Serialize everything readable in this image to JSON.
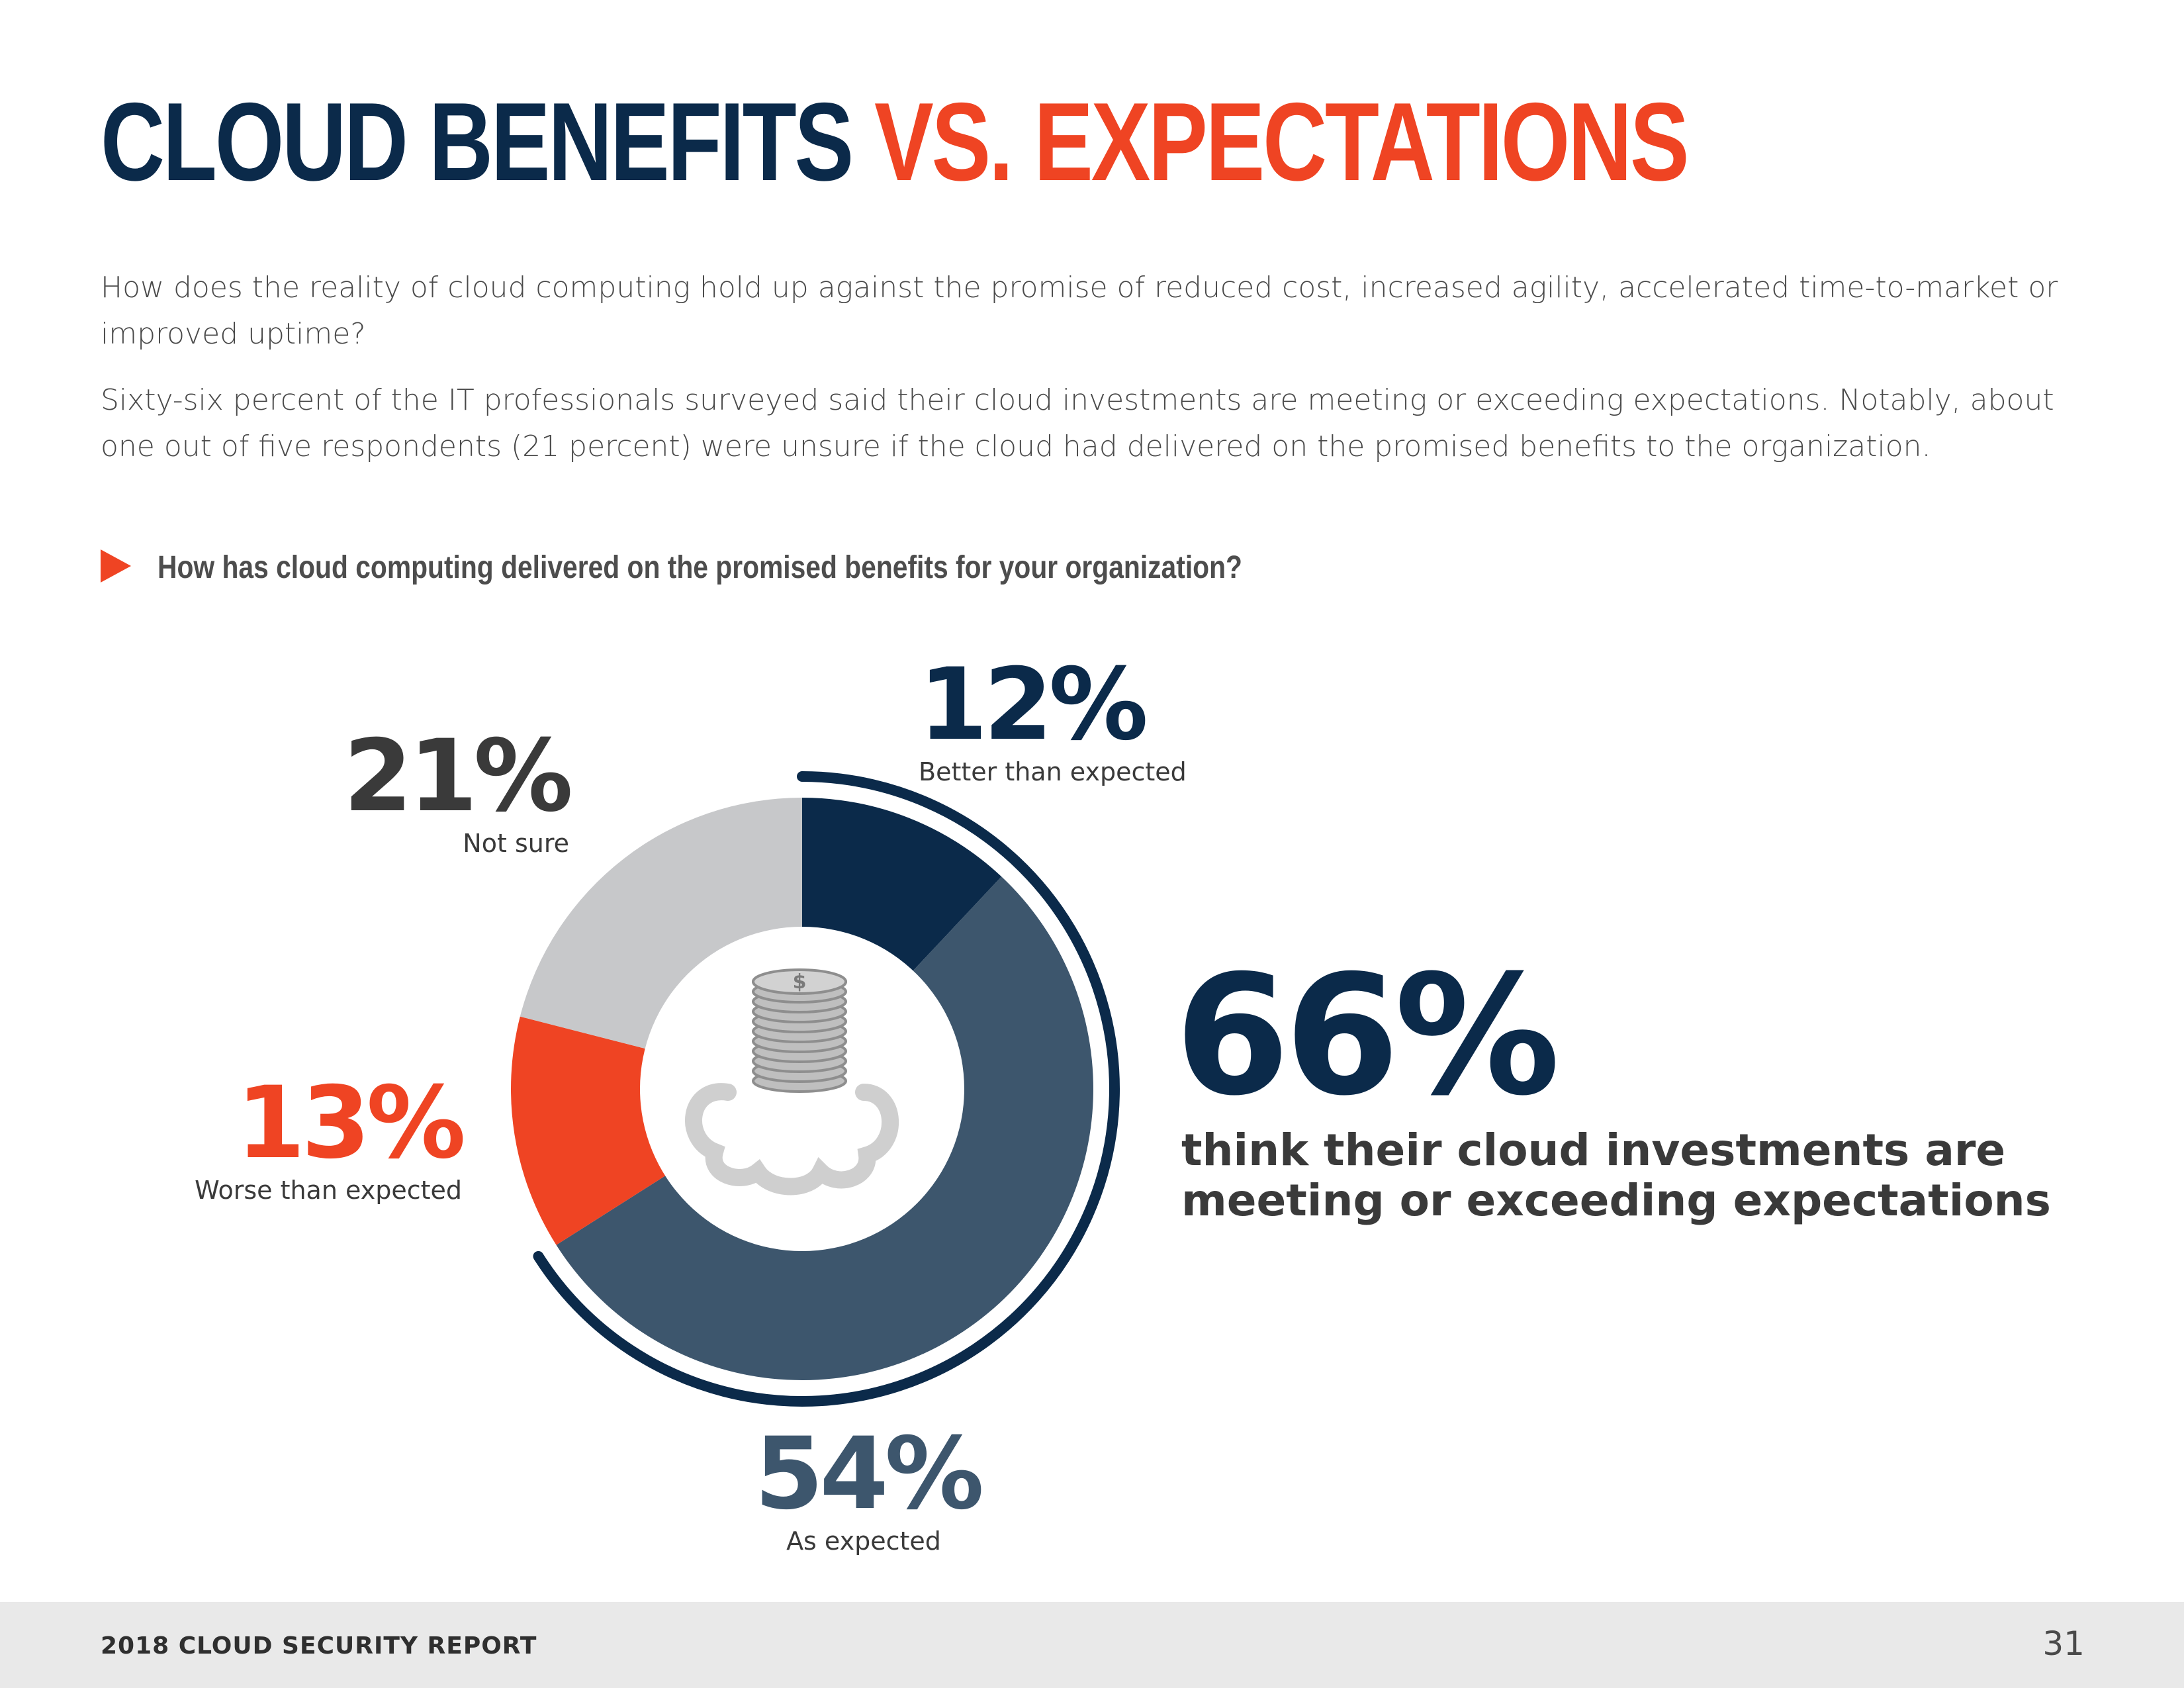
{
  "header": {
    "title_part1": "CLOUD BENEFITS",
    "title_part2": "VS. EXPECTATIONS"
  },
  "intro": {
    "paragraph1": "How does the reality of cloud computing hold up against the promise of reduced cost, increased agility, accelerated time-to-market or improved uptime?",
    "paragraph2": "Sixty-six percent of the IT professionals surveyed said their cloud investments are meeting or exceeding expectations. Notably, about one out of five respondents (21 percent) were unsure if the cloud had delivered on the promised benefits to the organization."
  },
  "question": "How has cloud computing delivered on the promised benefits for your organization?",
  "callout": {
    "value": "66%",
    "text": "think their cloud investments are meeting or exceeding expectations"
  },
  "chart_data": {
    "type": "pie",
    "donut": true,
    "title": "How has cloud computing delivered on the promised benefits for your organization?",
    "categories": [
      "Better than expected",
      "As expected",
      "Worse than expected",
      "Not sure"
    ],
    "values": [
      12,
      54,
      13,
      21
    ],
    "labels": [
      "12%",
      "54%",
      "13%",
      "21%"
    ],
    "unit": "%",
    "colors": [
      "#0b2a4a",
      "#3d566d",
      "#ef4423",
      "#c7c8ca"
    ],
    "highlight": {
      "categories": [
        "Better than expected",
        "As expected"
      ],
      "value": 66,
      "color": "#0b2a4a"
    },
    "center_icon": "coin-stack-cloud-icon"
  },
  "footer": {
    "report_title": "2018 CLOUD SECURITY REPORT",
    "page_number": "31"
  }
}
